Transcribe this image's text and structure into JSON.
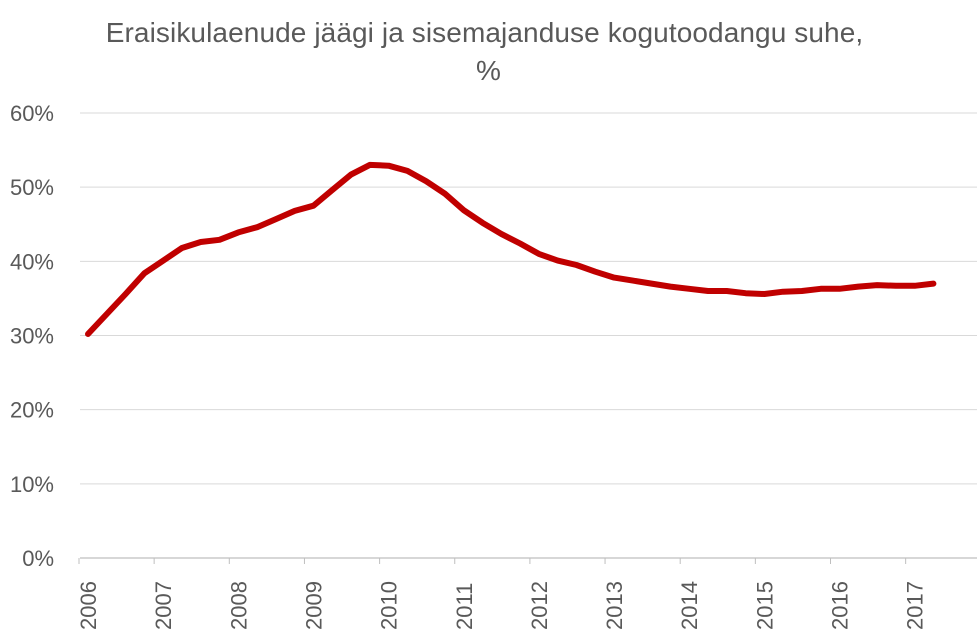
{
  "chart_data": {
    "type": "line",
    "title_line1": "Eraisikulaenude jäägi ja sisemajanduse kogutoodangu suhe,",
    "title_line2": "%",
    "xlabel": "",
    "ylabel": "",
    "ylim": [
      0,
      60
    ],
    "y_ticks": [
      0,
      10,
      20,
      30,
      40,
      50,
      60
    ],
    "y_tick_labels": [
      "0%",
      "10%",
      "20%",
      "30%",
      "40%",
      "50%",
      "60%"
    ],
    "x_tick_labels": [
      "2006",
      "2007",
      "2008",
      "2009",
      "2010",
      "2011",
      "2012",
      "2013",
      "2014",
      "2015",
      "2016",
      "2017"
    ],
    "grid": "horizontal",
    "series": [
      {
        "color": "#c00000",
        "x": [
          2006.0,
          2006.25,
          2006.5,
          2006.75,
          2007.0,
          2007.25,
          2007.5,
          2007.75,
          2008.0,
          2008.25,
          2008.5,
          2008.75,
          2009.0,
          2009.25,
          2009.5,
          2009.75,
          2010.0,
          2010.25,
          2010.5,
          2010.75,
          2011.0,
          2011.25,
          2011.5,
          2011.75,
          2012.0,
          2012.25,
          2012.5,
          2012.75,
          2013.0,
          2013.25,
          2013.5,
          2013.75,
          2014.0,
          2014.25,
          2014.5,
          2014.75,
          2015.0,
          2015.25,
          2015.5,
          2015.75,
          2016.0,
          2016.25,
          2016.5,
          2016.75,
          2017.0,
          2017.25
        ],
        "values": [
          30.2,
          32.9,
          35.6,
          38.4,
          40.1,
          41.8,
          42.6,
          42.9,
          43.9,
          44.6,
          45.7,
          46.8,
          47.5,
          49.6,
          51.7,
          53.0,
          52.9,
          52.2,
          50.8,
          49.1,
          46.9,
          45.2,
          43.7,
          42.4,
          41.0,
          40.1,
          39.5,
          38.6,
          37.8,
          37.4,
          37.0,
          36.6,
          36.3,
          36.0,
          36.0,
          35.7,
          35.6,
          35.9,
          36.0,
          36.3,
          36.3,
          36.6,
          36.8,
          36.7,
          36.7,
          37.0
        ]
      }
    ]
  }
}
